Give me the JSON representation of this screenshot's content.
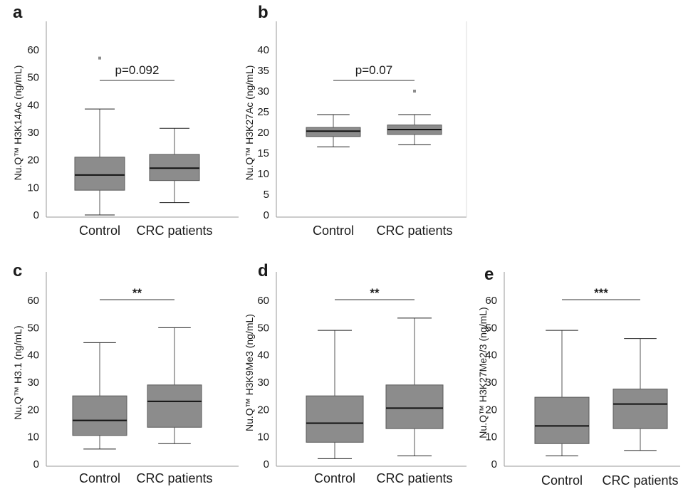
{
  "chart_data": [
    {
      "type": "box",
      "panel": "a",
      "ylabel": "Nu.Q™ H3K14Ac (ng/mL)",
      "ylim": [
        0,
        60
      ],
      "yticks": [
        0,
        10,
        20,
        30,
        40,
        50,
        60
      ],
      "categories": [
        "Control",
        "CRC patients"
      ],
      "boxes": [
        {
          "min": 0,
          "q1": 9,
          "median": 14.5,
          "q3": 21,
          "max": 38.5,
          "outliers": [
            57
          ]
        },
        {
          "min": 4.5,
          "q1": 12.5,
          "median": 17,
          "q3": 22,
          "max": 31.5,
          "outliers": []
        }
      ],
      "annotation": "p=0.092"
    },
    {
      "type": "box",
      "panel": "b",
      "ylabel": "Nu.Q™ H3K27Ac (ng/mL)",
      "ylim": [
        0,
        40
      ],
      "yticks": [
        0,
        5,
        10,
        15,
        20,
        25,
        30,
        35,
        40
      ],
      "categories": [
        "Control",
        "CRC patients"
      ],
      "boxes": [
        {
          "min": 16.5,
          "q1": 19,
          "median": 20.3,
          "q3": 21.2,
          "max": 24.3,
          "outliers": []
        },
        {
          "min": 17,
          "q1": 19.5,
          "median": 20.7,
          "q3": 21.8,
          "max": 24.3,
          "outliers": [
            30
          ]
        }
      ],
      "annotation": "p=0.07"
    },
    {
      "type": "box",
      "panel": "c",
      "ylabel": "Nu.Q™ H3.1 (ng/mL)",
      "ylim": [
        0,
        60
      ],
      "yticks": [
        0,
        10,
        20,
        30,
        40,
        50,
        60
      ],
      "categories": [
        "Control",
        "CRC patients"
      ],
      "boxes": [
        {
          "min": 5.5,
          "q1": 10.5,
          "median": 16,
          "q3": 25,
          "max": 44.5,
          "outliers": []
        },
        {
          "min": 7.5,
          "q1": 13.5,
          "median": 23,
          "q3": 29,
          "max": 50,
          "outliers": []
        }
      ],
      "annotation": "**"
    },
    {
      "type": "box",
      "panel": "d",
      "ylabel": "Nu.Q™ H3K9Me3 (ng/mL)",
      "ylim": [
        0,
        60
      ],
      "yticks": [
        0,
        10,
        20,
        30,
        40,
        50,
        60
      ],
      "categories": [
        "Control",
        "CRC patients"
      ],
      "boxes": [
        {
          "min": 2,
          "q1": 8,
          "median": 15,
          "q3": 25,
          "max": 49,
          "outliers": []
        },
        {
          "min": 3,
          "q1": 13,
          "median": 20.5,
          "q3": 29,
          "max": 53.5,
          "outliers": []
        }
      ],
      "annotation": "**"
    },
    {
      "type": "box",
      "panel": "e",
      "ylabel": "Nu.Q™ H3K27Me2/3 (ng/mL)",
      "ylim": [
        0,
        60
      ],
      "yticks": [
        0,
        10,
        20,
        30,
        40,
        50,
        60
      ],
      "categories": [
        "Control",
        "CRC patients"
      ],
      "boxes": [
        {
          "min": 3,
          "q1": 7.5,
          "median": 14,
          "q3": 24.5,
          "max": 49,
          "outliers": []
        },
        {
          "min": 5,
          "q1": 13,
          "median": 22,
          "q3": 27.5,
          "max": 46,
          "outliers": []
        }
      ],
      "annotation": "***"
    }
  ],
  "colors": {
    "box_fill": "#8c8c8c",
    "box_stroke": "#5a5a5a",
    "median": "#111111",
    "whisker": "#555555",
    "axis": "#999999",
    "outlier": "#8c8c8c"
  }
}
